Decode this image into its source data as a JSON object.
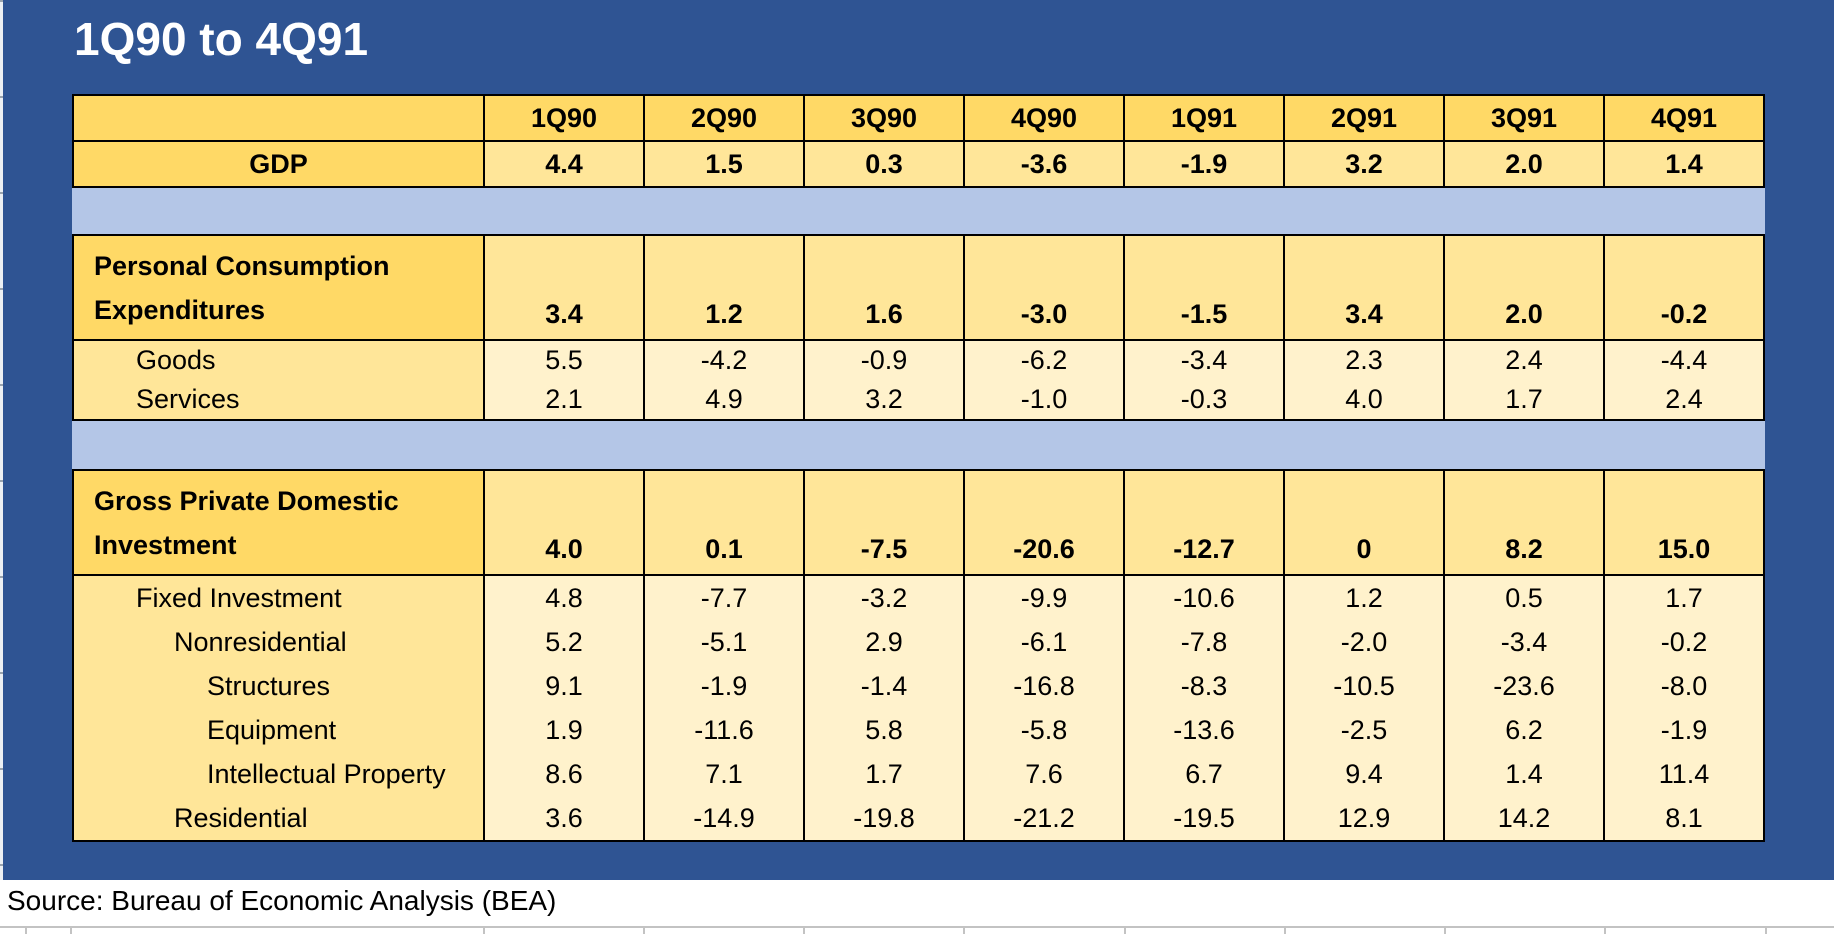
{
  "title": "1Q90 to 4Q91",
  "colors": {
    "background_blue": "#2F5493",
    "band_light_blue": "#B4C6E7",
    "header_gold": "#FFD966",
    "cell_medium_yellow": "#FFE699",
    "cell_pale_yellow": "#FFF2CC",
    "title_text": "#FFFFFF",
    "table_text": "#000000",
    "footer_background": "#FFFFFF"
  },
  "chart_data": {
    "type": "table",
    "title": "1Q90 to 4Q91",
    "source": "Source: Bureau of Economic Analysis (BEA)",
    "columns": [
      "1Q90",
      "2Q90",
      "3Q90",
      "4Q90",
      "1Q91",
      "2Q91",
      "3Q91",
      "4Q91"
    ],
    "blocks": [
      {
        "name": "gdp-block",
        "rows": [
          {
            "name": "quarter-header-row",
            "kind": "colheader",
            "label": ""
          },
          {
            "name": "gdp-row",
            "kind": "total",
            "label": "GDP",
            "labelAlign": "center",
            "values": [
              "4.4",
              "1.5",
              "0.3",
              "-3.6",
              "-1.9",
              "3.2",
              "2.0",
              "1.4"
            ]
          }
        ]
      },
      {
        "name": "pce-block",
        "rows": [
          {
            "name": "personal-consumption-expenditures-row",
            "kind": "total",
            "twoLine": true,
            "label": "Personal Consumption Expenditures",
            "labelLines": [
              "Personal Consumption",
              "Expenditures"
            ],
            "values": [
              "3.4",
              "1.2",
              "1.6",
              "-3.0",
              "-1.5",
              "3.4",
              "2.0",
              "-0.2"
            ]
          },
          {
            "name": "goods-row",
            "kind": "detail",
            "indent": 1,
            "label": "Goods",
            "values": [
              "5.5",
              "-4.2",
              "-0.9",
              "-6.2",
              "-3.4",
              "2.3",
              "2.4",
              "-4.4"
            ]
          },
          {
            "name": "services-row",
            "kind": "detail",
            "indent": 1,
            "label": "Services",
            "values": [
              "2.1",
              "4.9",
              "3.2",
              "-1.0",
              "-0.3",
              "4.0",
              "1.7",
              "2.4"
            ]
          }
        ]
      },
      {
        "name": "gpdi-block",
        "rows": [
          {
            "name": "gross-private-domestic-investment-row",
            "kind": "total",
            "twoLine": true,
            "label": "Gross Private Domestic Investment",
            "labelLines": [
              "Gross Private Domestic",
              "Investment"
            ],
            "values": [
              "4.0",
              "0.1",
              "-7.5",
              "-20.6",
              "-12.7",
              "0",
              "8.2",
              "15.0"
            ]
          },
          {
            "name": "fixed-investment-row",
            "kind": "detail",
            "indent": 1,
            "label": "Fixed Investment",
            "values": [
              "4.8",
              "-7.7",
              "-3.2",
              "-9.9",
              "-10.6",
              "1.2",
              "0.5",
              "1.7"
            ]
          },
          {
            "name": "nonresidential-row",
            "kind": "detail",
            "indent": 2,
            "label": "Nonresidential",
            "values": [
              "5.2",
              "-5.1",
              "2.9",
              "-6.1",
              "-7.8",
              "-2.0",
              "-3.4",
              "-0.2"
            ]
          },
          {
            "name": "structures-row",
            "kind": "detail",
            "indent": 3,
            "label": "Structures",
            "values": [
              "9.1",
              "-1.9",
              "-1.4",
              "-16.8",
              "-8.3",
              "-10.5",
              "-23.6",
              "-8.0"
            ]
          },
          {
            "name": "equipment-row",
            "kind": "detail",
            "indent": 3,
            "label": "Equipment",
            "values": [
              "1.9",
              "-11.6",
              "5.8",
              "-5.8",
              "-13.6",
              "-2.5",
              "6.2",
              "-1.9"
            ]
          },
          {
            "name": "intellectual-property-row",
            "kind": "detail",
            "indent": 3,
            "label": "Intellectual Property",
            "values": [
              "8.6",
              "7.1",
              "1.7",
              "7.6",
              "6.7",
              "9.4",
              "1.4",
              "11.4"
            ]
          },
          {
            "name": "residential-row",
            "kind": "detail",
            "indent": 2,
            "label": "Residential",
            "values": [
              "3.6",
              "-14.9",
              "-19.8",
              "-21.2",
              "-19.5",
              "12.9",
              "14.2",
              "8.1"
            ]
          }
        ]
      }
    ]
  }
}
